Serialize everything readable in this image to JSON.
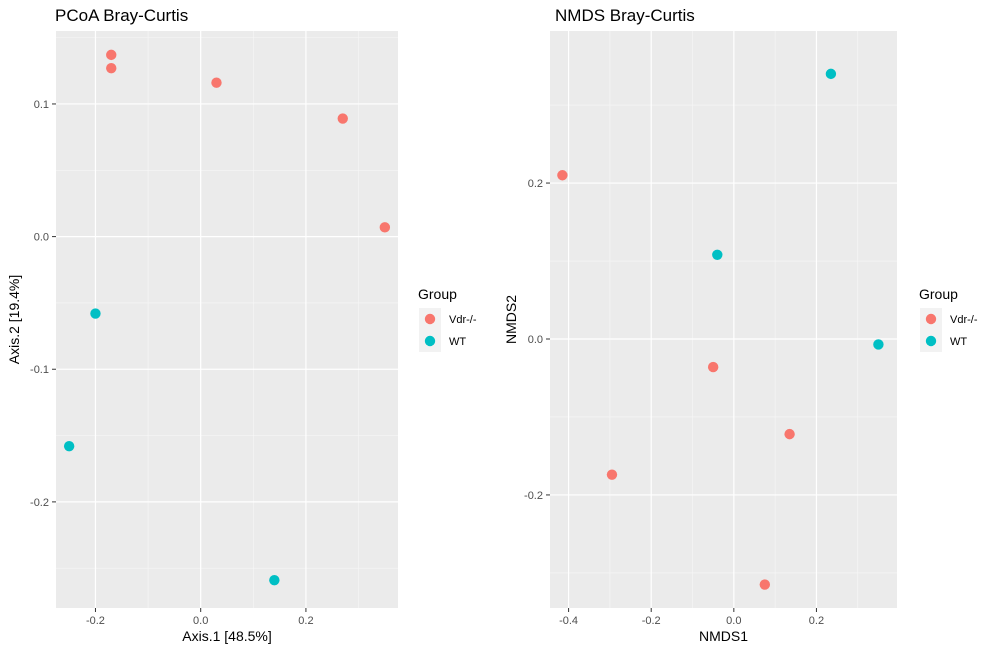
{
  "chart_data": [
    {
      "type": "scatter",
      "title": "PCoA Bray-Curtis",
      "xlabel": "Axis.1   [48.5%]",
      "ylabel": "Axis.2   [19.4%]",
      "xlim": [
        -0.275,
        0.375
      ],
      "ylim": [
        -0.28,
        0.155
      ],
      "xticks": [
        -0.2,
        0.0,
        0.2
      ],
      "xtick_labels": [
        "-0.2",
        "0.0",
        "0.2"
      ],
      "yticks": [
        0.1,
        0.0,
        -0.1,
        -0.2
      ],
      "ytick_labels": [
        "0.1",
        "0.0",
        "-0.1",
        "-0.2"
      ],
      "grid": true,
      "legend": {
        "title": "Group",
        "position": "right"
      },
      "series": [
        {
          "name": "Vdr-/-",
          "color": "#F8766D",
          "points": [
            [
              -0.17,
              0.137
            ],
            [
              -0.17,
              0.127
            ],
            [
              0.03,
              0.116
            ],
            [
              0.27,
              0.089
            ],
            [
              0.35,
              0.007
            ]
          ]
        },
        {
          "name": "WT",
          "color": "#00BFC4",
          "points": [
            [
              -0.2,
              -0.058
            ],
            [
              -0.25,
              -0.158
            ],
            [
              0.14,
              -0.259
            ]
          ]
        }
      ]
    },
    {
      "type": "scatter",
      "title": "NMDS Bray-Curtis",
      "xlabel": "NMDS1",
      "ylabel": "NMDS2",
      "xlim": [
        -0.445,
        0.395
      ],
      "ylim": [
        -0.345,
        0.395
      ],
      "xticks": [
        -0.4,
        -0.2,
        0.0,
        0.2
      ],
      "xtick_labels": [
        "-0.4",
        "-0.2",
        "0.0",
        "0.2"
      ],
      "yticks": [
        0.2,
        0.0,
        -0.2
      ],
      "ytick_labels": [
        "0.2",
        "0.0",
        "-0.2"
      ],
      "grid": true,
      "legend": {
        "title": "Group",
        "position": "right"
      },
      "series": [
        {
          "name": "Vdr-/-",
          "color": "#F8766D",
          "points": [
            [
              -0.415,
              0.21
            ],
            [
              -0.05,
              -0.036
            ],
            [
              0.135,
              -0.122
            ],
            [
              -0.295,
              -0.174
            ],
            [
              0.075,
              -0.315
            ]
          ]
        },
        {
          "name": "WT",
          "color": "#00BFC4",
          "points": [
            [
              0.235,
              0.34
            ],
            [
              -0.04,
              0.108
            ],
            [
              0.35,
              -0.007
            ]
          ]
        }
      ]
    }
  ]
}
